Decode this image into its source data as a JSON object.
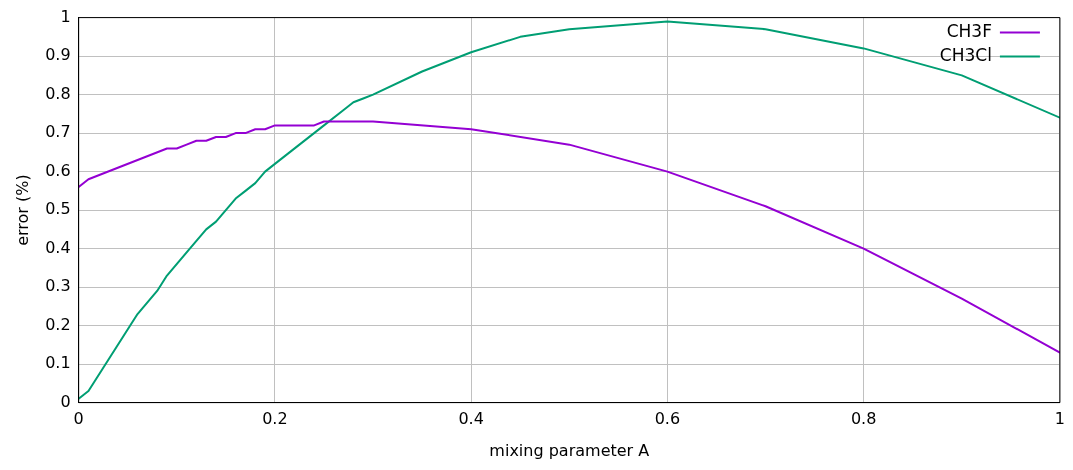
{
  "chart_data": {
    "type": "line",
    "xlabel": "mixing parameter A",
    "ylabel": "error (%)",
    "xlim": [
      0,
      1
    ],
    "xticks": [
      0,
      0.2,
      0.4,
      0.6,
      0.8,
      1
    ],
    "ylim": [
      0,
      1
    ],
    "yticks": [
      0,
      0.1,
      0.2,
      0.3,
      0.4,
      0.5,
      0.6,
      0.7,
      0.8,
      0.9,
      1
    ],
    "grid": true,
    "legend": "top right",
    "marker": "none",
    "line_style": "solid",
    "series": [
      {
        "name": "CH3F",
        "color": "#9400d3",
        "x": [
          0,
          0.01,
          0.09,
          0.1,
          0.11,
          0.12,
          0.13,
          0.14,
          0.15,
          0.16,
          0.17,
          0.18,
          0.19,
          0.2,
          0.24,
          0.25,
          0.3,
          0.4,
          0.5,
          0.6,
          0.7,
          0.8,
          0.9,
          1
        ],
        "values": [
          0.56,
          0.58,
          0.66,
          0.66,
          0.67,
          0.68,
          0.68,
          0.69,
          0.69,
          0.7,
          0.7,
          0.71,
          0.71,
          0.72,
          0.72,
          0.73,
          0.73,
          0.71,
          0.67,
          0.6,
          0.51,
          0.4,
          0.27,
          0.13
        ]
      },
      {
        "name": "CH3Cl",
        "color": "#009e73",
        "x": [
          0,
          0.01,
          0.06,
          0.08,
          0.09,
          0.12,
          0.13,
          0.14,
          0.16,
          0.17,
          0.18,
          0.19,
          0.2,
          0.25,
          0.27,
          0.28,
          0.29,
          0.3,
          0.35,
          0.4,
          0.45,
          0.5,
          0.6,
          0.7,
          0.8,
          0.9,
          1
        ],
        "values": [
          0.01,
          0.03,
          0.23,
          0.29,
          0.33,
          0.42,
          0.45,
          0.47,
          0.53,
          0.55,
          0.57,
          0.6,
          0.62,
          0.72,
          0.76,
          0.78,
          0.79,
          0.8,
          0.86,
          0.91,
          0.95,
          0.97,
          0.99,
          0.97,
          0.92,
          0.85,
          0.74
        ]
      }
    ]
  }
}
